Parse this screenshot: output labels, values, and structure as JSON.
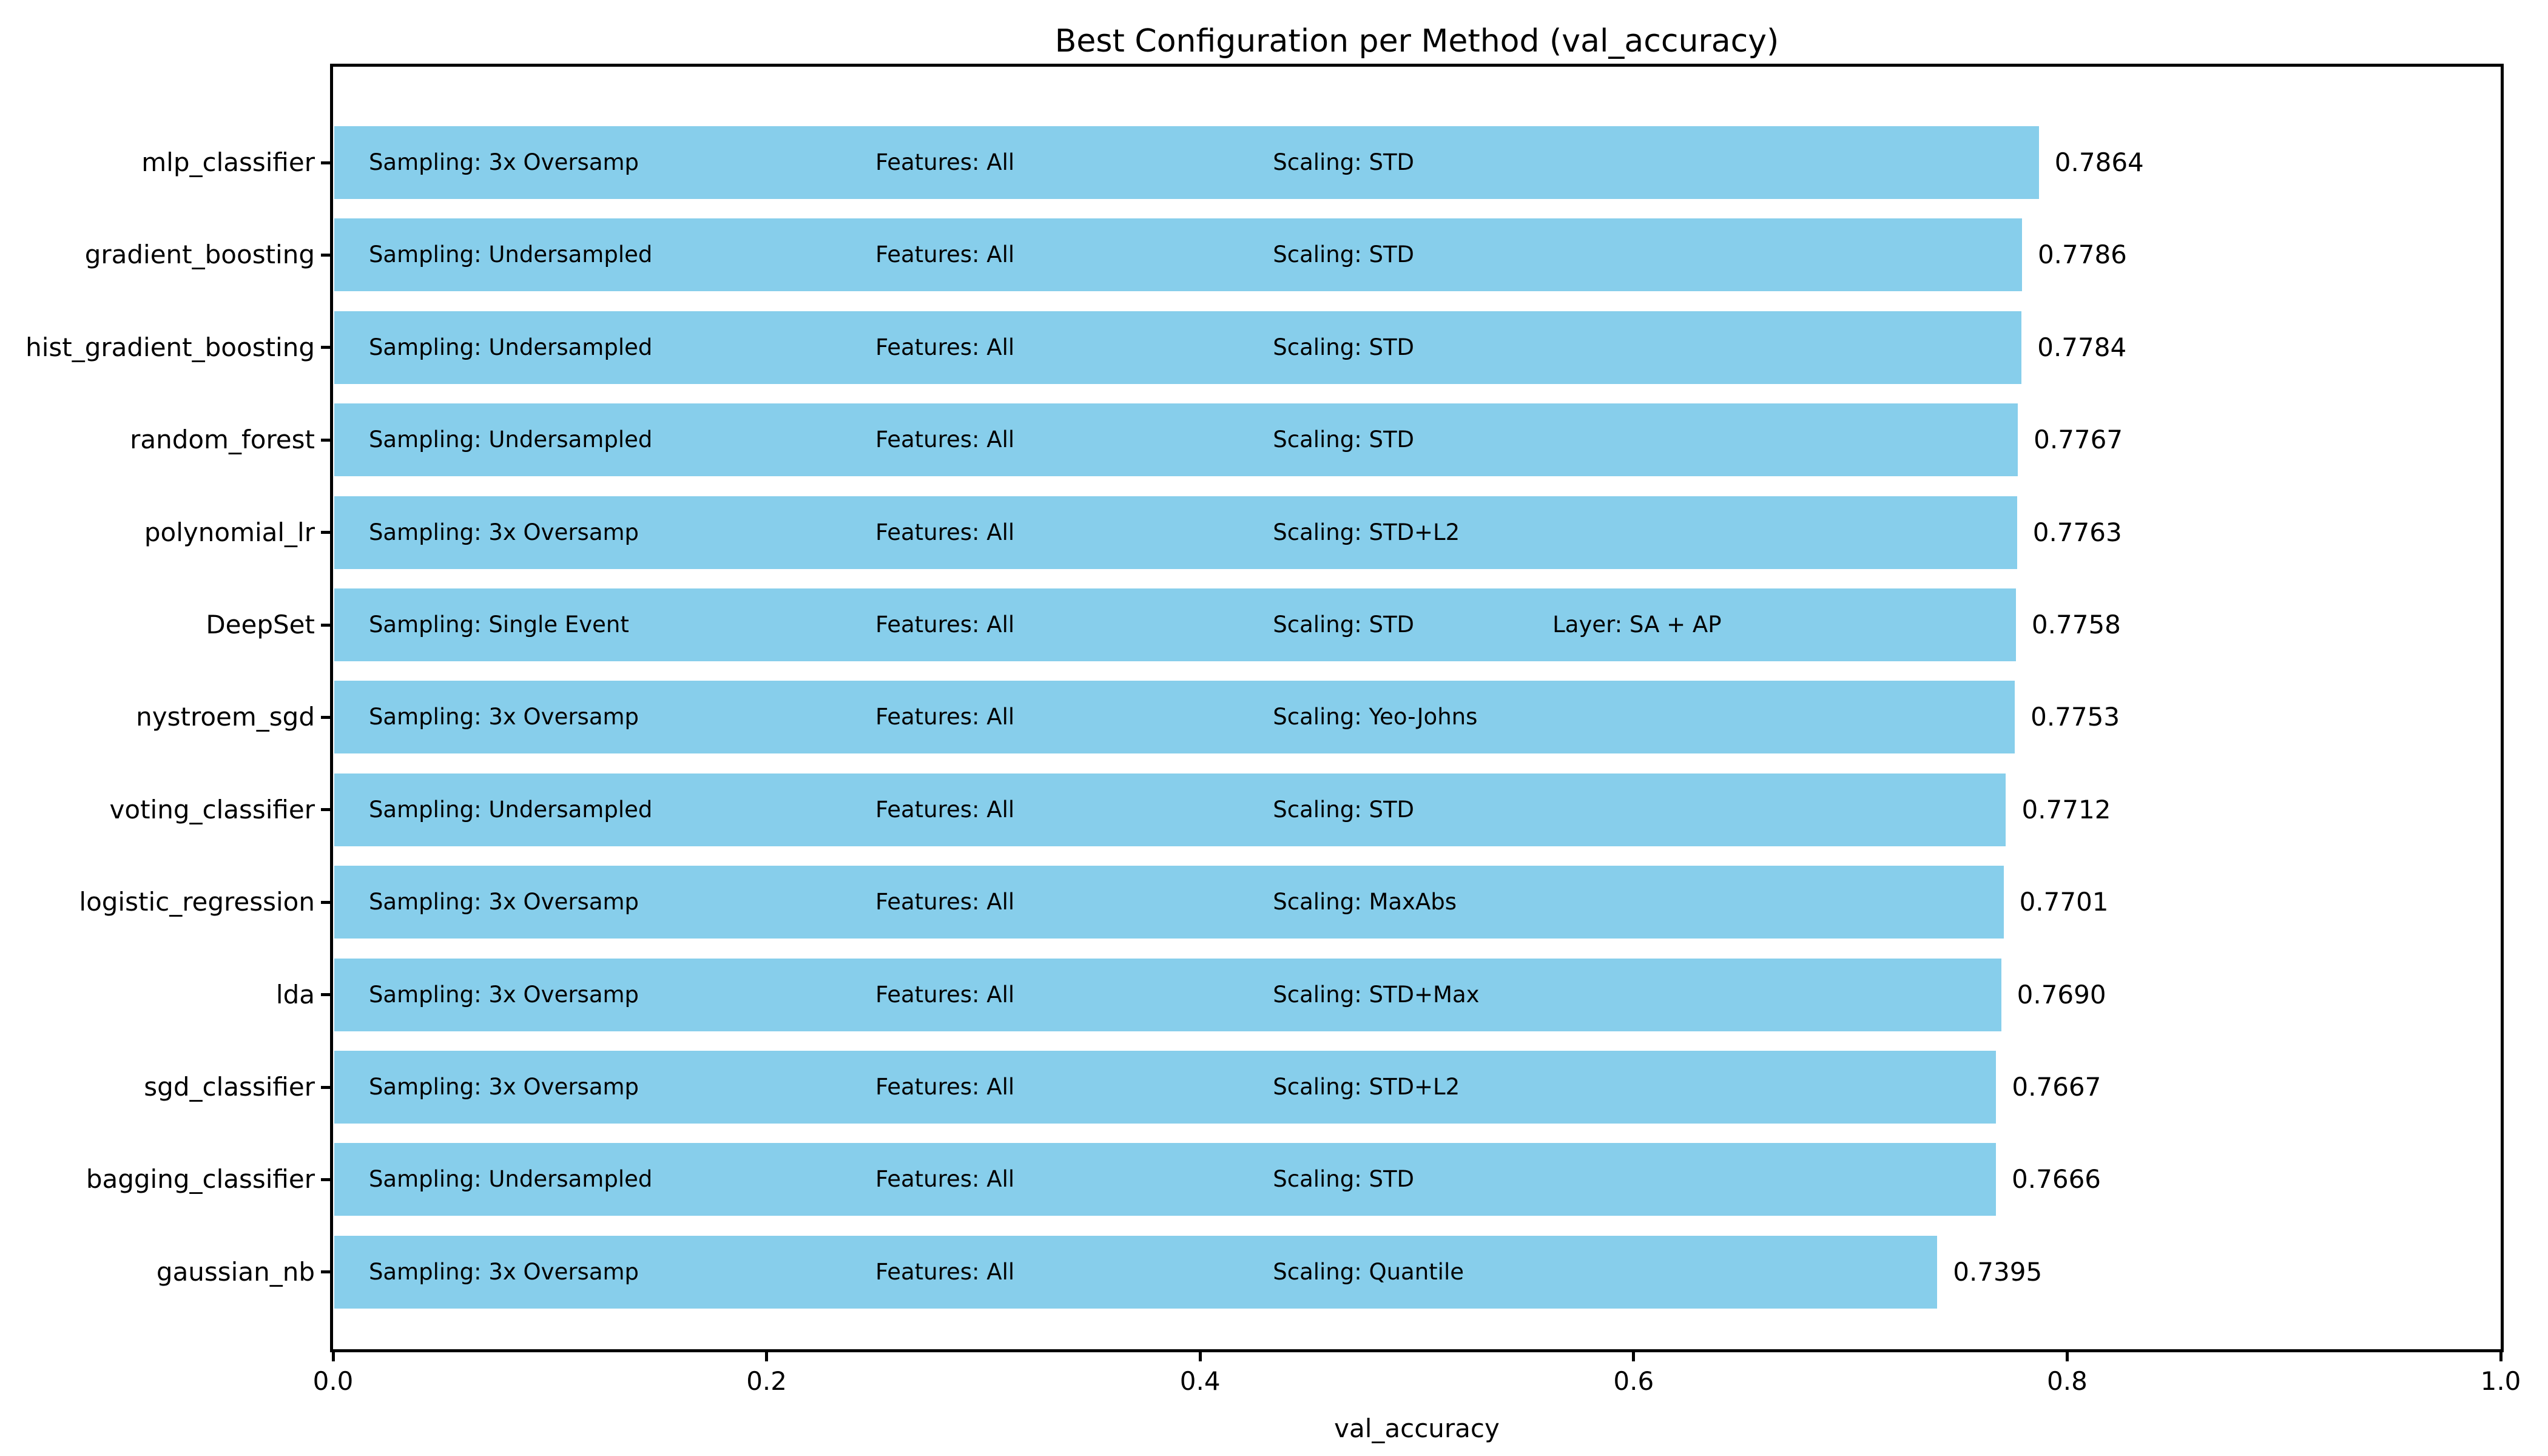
{
  "chart_data": {
    "type": "bar",
    "orientation": "horizontal",
    "title": "Best Configuration per Method (val_accuracy)",
    "xlabel": "val_accuracy",
    "ylabel": "",
    "xlim": [
      0.0,
      1.0
    ],
    "xticks": [
      "0.0",
      "0.2",
      "0.4",
      "0.6",
      "0.8",
      "1.0"
    ],
    "grid": false,
    "legend": false,
    "bar_color": "#87ceeb",
    "rows": [
      {
        "label": "mlp_classifier",
        "value": 0.7864,
        "value_label": "0.7864",
        "texts": [
          "Sampling: 3x Oversamp",
          "Features: All",
          "Scaling: STD"
        ]
      },
      {
        "label": "gradient_boosting",
        "value": 0.7786,
        "value_label": "0.7786",
        "texts": [
          "Sampling: Undersampled",
          "Features: All",
          "Scaling: STD"
        ]
      },
      {
        "label": "hist_gradient_boosting",
        "value": 0.7784,
        "value_label": "0.7784",
        "texts": [
          "Sampling: Undersampled",
          "Features: All",
          "Scaling: STD"
        ]
      },
      {
        "label": "random_forest",
        "value": 0.7767,
        "value_label": "0.7767",
        "texts": [
          "Sampling: Undersampled",
          "Features: All",
          "Scaling: STD"
        ]
      },
      {
        "label": "polynomial_lr",
        "value": 0.7763,
        "value_label": "0.7763",
        "texts": [
          "Sampling: 3x Oversamp",
          "Features: All",
          "Scaling: STD+L2"
        ]
      },
      {
        "label": "DeepSet",
        "value": 0.7758,
        "value_label": "0.7758",
        "texts": [
          "Sampling: Single Event",
          "Features: All",
          "Scaling: STD",
          "Layer: SA + AP"
        ]
      },
      {
        "label": "nystroem_sgd",
        "value": 0.7753,
        "value_label": "0.7753",
        "texts": [
          "Sampling: 3x Oversamp",
          "Features: All",
          "Scaling: Yeo-Johns"
        ]
      },
      {
        "label": "voting_classifier",
        "value": 0.7712,
        "value_label": "0.7712",
        "texts": [
          "Sampling: Undersampled",
          "Features: All",
          "Scaling: STD"
        ]
      },
      {
        "label": "logistic_regression",
        "value": 0.7701,
        "value_label": "0.7701",
        "texts": [
          "Sampling: 3x Oversamp",
          "Features: All",
          "Scaling: MaxAbs"
        ]
      },
      {
        "label": "lda",
        "value": 0.769,
        "value_label": "0.7690",
        "texts": [
          "Sampling: 3x Oversamp",
          "Features: All",
          "Scaling: STD+Max"
        ]
      },
      {
        "label": "sgd_classifier",
        "value": 0.7667,
        "value_label": "0.7667",
        "texts": [
          "Sampling: 3x Oversamp",
          "Features: All",
          "Scaling: STD+L2"
        ]
      },
      {
        "label": "bagging_classifier",
        "value": 0.7666,
        "value_label": "0.7666",
        "texts": [
          "Sampling: Undersampled",
          "Features: All",
          "Scaling: STD"
        ]
      },
      {
        "label": "gaussian_nb",
        "value": 0.7395,
        "value_label": "0.7395",
        "texts": [
          "Sampling: 3x Oversamp",
          "Features: All",
          "Scaling: Quantile"
        ]
      }
    ]
  }
}
